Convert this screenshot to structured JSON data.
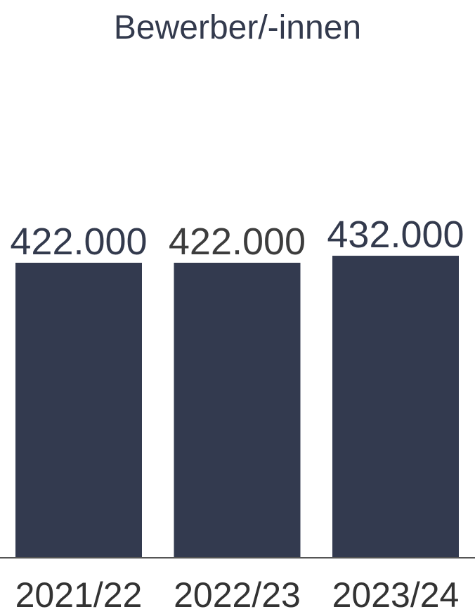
{
  "chart_data": {
    "type": "bar",
    "title": "Bewerber/-innen",
    "categories": [
      "2021/22",
      "2022/23",
      "2023/24"
    ],
    "values": [
      422000,
      422000,
      432000
    ],
    "value_labels": [
      "422.000",
      "422.000",
      "432.000"
    ],
    "xlabel": "",
    "ylabel": "",
    "grid": false,
    "legend": "none",
    "colors": {
      "bar": "#333a4f",
      "axis": "#555555",
      "title": "#333a4d",
      "value_label_default": "#333a4d",
      "value_label_alt": "#3d3d3d",
      "tick_label": "#333333"
    }
  }
}
